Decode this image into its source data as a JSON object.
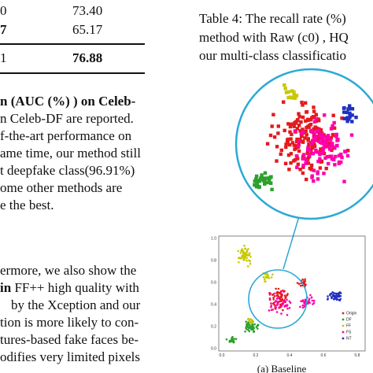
{
  "table": {
    "rows": [
      {
        "left": "0",
        "value": "73.40",
        "bold": false
      },
      {
        "left": "7",
        "value": "65.17",
        "bold": false
      },
      {
        "left": "1",
        "value": "76.88",
        "bold": true
      }
    ]
  },
  "body_text": {
    "heading": "n (AUC (%) ) on Celeb-",
    "lines": [
      "n Celeb-DF are reported.",
      "f-the-art performance on",
      "ame time, our method still",
      "t deepfake class(96.91%)",
      "ome other methods are",
      "e the best."
    ],
    "lines2": [
      "ermore, we also show the",
      "in FF++ high quality with",
      "by the Xception and our",
      "tion is more likely to con-",
      "tures-based fake faces be-",
      "odifies very limited pixels"
    ]
  },
  "caption": {
    "lines": [
      "Table 4: The recall rate (%)",
      "method with Raw (c0) , HQ",
      "our multi-class classificatio"
    ]
  },
  "figure": {
    "sublabel": "(a) Baseline",
    "x_ticks": [
      "0.0",
      "0.2",
      "0.4",
      "0.6",
      "0.8"
    ],
    "y_ticks": [
      "0.0",
      "0.2",
      "0.4",
      "0.6",
      "0.8",
      "1.0"
    ],
    "legend": [
      {
        "label": "Origin",
        "color": "#e41a1c"
      },
      {
        "label": "DF",
        "color": "#2ca02c"
      },
      {
        "label": "FF",
        "color": "#c8c800"
      },
      {
        "label": "FS",
        "color": "#ff00aa"
      },
      {
        "label": "NT",
        "color": "#2030c0"
      }
    ],
    "colors": {
      "circle": "#2aa9d6",
      "axis": "#333333"
    }
  }
}
